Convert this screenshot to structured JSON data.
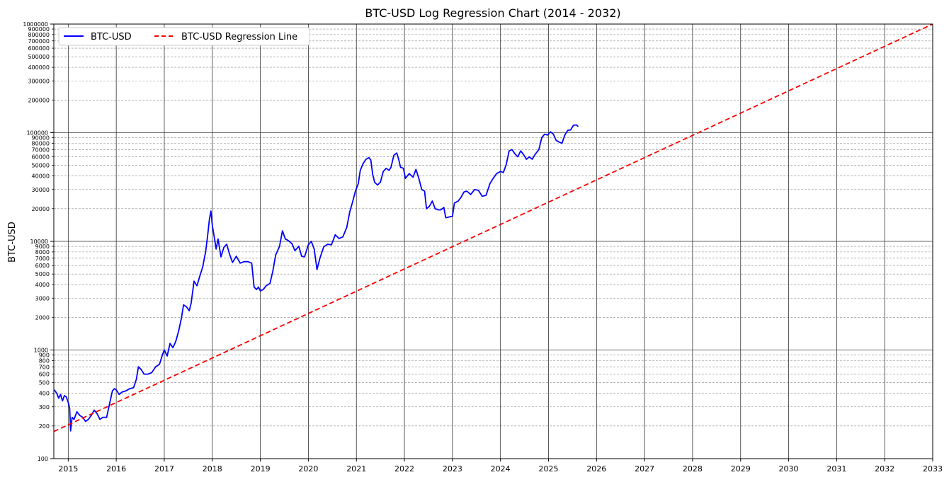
{
  "chart_data": {
    "type": "line",
    "title": "BTC-USD Log Regression Chart (2014 - 2032)",
    "xlabel": "",
    "ylabel": "BTC-USD",
    "yscale": "log",
    "ylim": [
      100,
      1000000
    ],
    "xlim": [
      2014.7,
      2033.0
    ],
    "grid": true,
    "legend_placement": "top-left",
    "x_ticks": [
      "2015",
      "2016",
      "2017",
      "2018",
      "2019",
      "2020",
      "2021",
      "2022",
      "2023",
      "2024",
      "2025",
      "2026",
      "2027",
      "2028",
      "2029",
      "2030",
      "2031",
      "2032",
      "2033"
    ],
    "y_major_ticks": [
      "100",
      "1000",
      "10000",
      "100000",
      "1000000"
    ],
    "y_minor_ticks": [
      "200",
      "300",
      "400",
      "500",
      "600",
      "700",
      "800",
      "900",
      "2000",
      "3000",
      "4000",
      "5000",
      "6000",
      "7000",
      "8000",
      "9000",
      "20000",
      "30000",
      "40000",
      "50000",
      "60000",
      "70000",
      "80000",
      "90000",
      "200000",
      "300000",
      "400000",
      "500000",
      "600000",
      "700000",
      "800000",
      "900000"
    ],
    "series": [
      {
        "name": "BTC-USD",
        "color": "#0000ff",
        "style": "solid",
        "points": [
          [
            2014.71,
            430
          ],
          [
            2014.76,
            400
          ],
          [
            2014.8,
            360
          ],
          [
            2014.84,
            390
          ],
          [
            2014.88,
            340
          ],
          [
            2014.92,
            380
          ],
          [
            2014.96,
            370
          ],
          [
            2015.0,
            330
          ],
          [
            2015.03,
            290
          ],
          [
            2015.05,
            180
          ],
          [
            2015.08,
            240
          ],
          [
            2015.12,
            230
          ],
          [
            2015.18,
            270
          ],
          [
            2015.24,
            250
          ],
          [
            2015.3,
            240
          ],
          [
            2015.36,
            220
          ],
          [
            2015.42,
            230
          ],
          [
            2015.48,
            250
          ],
          [
            2015.54,
            280
          ],
          [
            2015.6,
            260
          ],
          [
            2015.66,
            230
          ],
          [
            2015.72,
            240
          ],
          [
            2015.8,
            240
          ],
          [
            2015.86,
            320
          ],
          [
            2015.92,
            420
          ],
          [
            2015.96,
            440
          ],
          [
            2016.0,
            430
          ],
          [
            2016.06,
            390
          ],
          [
            2016.12,
            410
          ],
          [
            2016.2,
            420
          ],
          [
            2016.28,
            440
          ],
          [
            2016.36,
            450
          ],
          [
            2016.42,
            540
          ],
          [
            2016.46,
            700
          ],
          [
            2016.52,
            660
          ],
          [
            2016.58,
            600
          ],
          [
            2016.66,
            600
          ],
          [
            2016.74,
            620
          ],
          [
            2016.82,
            700
          ],
          [
            2016.9,
            740
          ],
          [
            2016.96,
            900
          ],
          [
            2017.0,
            1000
          ],
          [
            2017.06,
            880
          ],
          [
            2017.12,
            1150
          ],
          [
            2017.18,
            1050
          ],
          [
            2017.24,
            1200
          ],
          [
            2017.3,
            1500
          ],
          [
            2017.36,
            2000
          ],
          [
            2017.4,
            2600
          ],
          [
            2017.46,
            2500
          ],
          [
            2017.52,
            2300
          ],
          [
            2017.56,
            2700
          ],
          [
            2017.62,
            4300
          ],
          [
            2017.68,
            3900
          ],
          [
            2017.74,
            4800
          ],
          [
            2017.8,
            5800
          ],
          [
            2017.86,
            8000
          ],
          [
            2017.9,
            11000
          ],
          [
            2017.94,
            16000
          ],
          [
            2017.97,
            19000
          ],
          [
            2018.0,
            14000
          ],
          [
            2018.04,
            11000
          ],
          [
            2018.08,
            8500
          ],
          [
            2018.12,
            10500
          ],
          [
            2018.18,
            7200
          ],
          [
            2018.24,
            8800
          ],
          [
            2018.3,
            9400
          ],
          [
            2018.36,
            7600
          ],
          [
            2018.42,
            6400
          ],
          [
            2018.5,
            7300
          ],
          [
            2018.58,
            6300
          ],
          [
            2018.66,
            6500
          ],
          [
            2018.74,
            6500
          ],
          [
            2018.82,
            6300
          ],
          [
            2018.87,
            3800
          ],
          [
            2018.92,
            3600
          ],
          [
            2018.96,
            3800
          ],
          [
            2019.0,
            3500
          ],
          [
            2019.06,
            3600
          ],
          [
            2019.12,
            3900
          ],
          [
            2019.2,
            4100
          ],
          [
            2019.26,
            5300
          ],
          [
            2019.32,
            7500
          ],
          [
            2019.4,
            9000
          ],
          [
            2019.46,
            12500
          ],
          [
            2019.52,
            10500
          ],
          [
            2019.58,
            10200
          ],
          [
            2019.66,
            9500
          ],
          [
            2019.72,
            8200
          ],
          [
            2019.8,
            9000
          ],
          [
            2019.86,
            7300
          ],
          [
            2019.92,
            7200
          ],
          [
            2020.0,
            9300
          ],
          [
            2020.06,
            10000
          ],
          [
            2020.12,
            8500
          ],
          [
            2020.18,
            5500
          ],
          [
            2020.24,
            7000
          ],
          [
            2020.32,
            8900
          ],
          [
            2020.4,
            9400
          ],
          [
            2020.48,
            9300
          ],
          [
            2020.56,
            11500
          ],
          [
            2020.64,
            10600
          ],
          [
            2020.72,
            11000
          ],
          [
            2020.8,
            13500
          ],
          [
            2020.86,
            18500
          ],
          [
            2020.92,
            23000
          ],
          [
            2020.98,
            29000
          ],
          [
            2021.04,
            34000
          ],
          [
            2021.08,
            45000
          ],
          [
            2021.14,
            52000
          ],
          [
            2021.2,
            57000
          ],
          [
            2021.26,
            59000
          ],
          [
            2021.3,
            56000
          ],
          [
            2021.34,
            41000
          ],
          [
            2021.38,
            35000
          ],
          [
            2021.44,
            33000
          ],
          [
            2021.5,
            35000
          ],
          [
            2021.56,
            44000
          ],
          [
            2021.62,
            47000
          ],
          [
            2021.68,
            45000
          ],
          [
            2021.72,
            48000
          ],
          [
            2021.78,
            62000
          ],
          [
            2021.84,
            65000
          ],
          [
            2021.88,
            57000
          ],
          [
            2021.92,
            48000
          ],
          [
            2021.98,
            47000
          ],
          [
            2022.02,
            38000
          ],
          [
            2022.1,
            42000
          ],
          [
            2022.18,
            39000
          ],
          [
            2022.24,
            46000
          ],
          [
            2022.3,
            38000
          ],
          [
            2022.36,
            30000
          ],
          [
            2022.42,
            29000
          ],
          [
            2022.46,
            20000
          ],
          [
            2022.52,
            21000
          ],
          [
            2022.58,
            23500
          ],
          [
            2022.64,
            20000
          ],
          [
            2022.7,
            19500
          ],
          [
            2022.76,
            19500
          ],
          [
            2022.82,
            20500
          ],
          [
            2022.86,
            16500
          ],
          [
            2022.94,
            16800
          ],
          [
            2023.0,
            17000
          ],
          [
            2023.04,
            22500
          ],
          [
            2023.12,
            23500
          ],
          [
            2023.18,
            25500
          ],
          [
            2023.24,
            28500
          ],
          [
            2023.3,
            29000
          ],
          [
            2023.38,
            27000
          ],
          [
            2023.46,
            30000
          ],
          [
            2023.54,
            29500
          ],
          [
            2023.62,
            26000
          ],
          [
            2023.7,
            26500
          ],
          [
            2023.78,
            34000
          ],
          [
            2023.84,
            37500
          ],
          [
            2023.92,
            42000
          ],
          [
            2024.0,
            44000
          ],
          [
            2024.06,
            43000
          ],
          [
            2024.12,
            51000
          ],
          [
            2024.18,
            68000
          ],
          [
            2024.24,
            70000
          ],
          [
            2024.3,
            64000
          ],
          [
            2024.36,
            60000
          ],
          [
            2024.42,
            68000
          ],
          [
            2024.48,
            63000
          ],
          [
            2024.54,
            57000
          ],
          [
            2024.6,
            60000
          ],
          [
            2024.66,
            57000
          ],
          [
            2024.72,
            63000
          ],
          [
            2024.8,
            70000
          ],
          [
            2024.86,
            90000
          ],
          [
            2024.92,
            97000
          ],
          [
            2024.98,
            95000
          ],
          [
            2025.04,
            102000
          ],
          [
            2025.1,
            97000
          ],
          [
            2025.16,
            85000
          ],
          [
            2025.22,
            82000
          ],
          [
            2025.28,
            80000
          ],
          [
            2025.34,
            95000
          ],
          [
            2025.4,
            105000
          ],
          [
            2025.46,
            106000
          ],
          [
            2025.52,
            117000
          ],
          [
            2025.58,
            118000
          ],
          [
            2025.62,
            114000
          ]
        ]
      },
      {
        "name": "BTC-USD Regression Line",
        "color": "#ff0000",
        "style": "dashed",
        "points": [
          [
            2014.7,
            178
          ],
          [
            2033.0,
            1000000
          ]
        ]
      }
    ]
  }
}
